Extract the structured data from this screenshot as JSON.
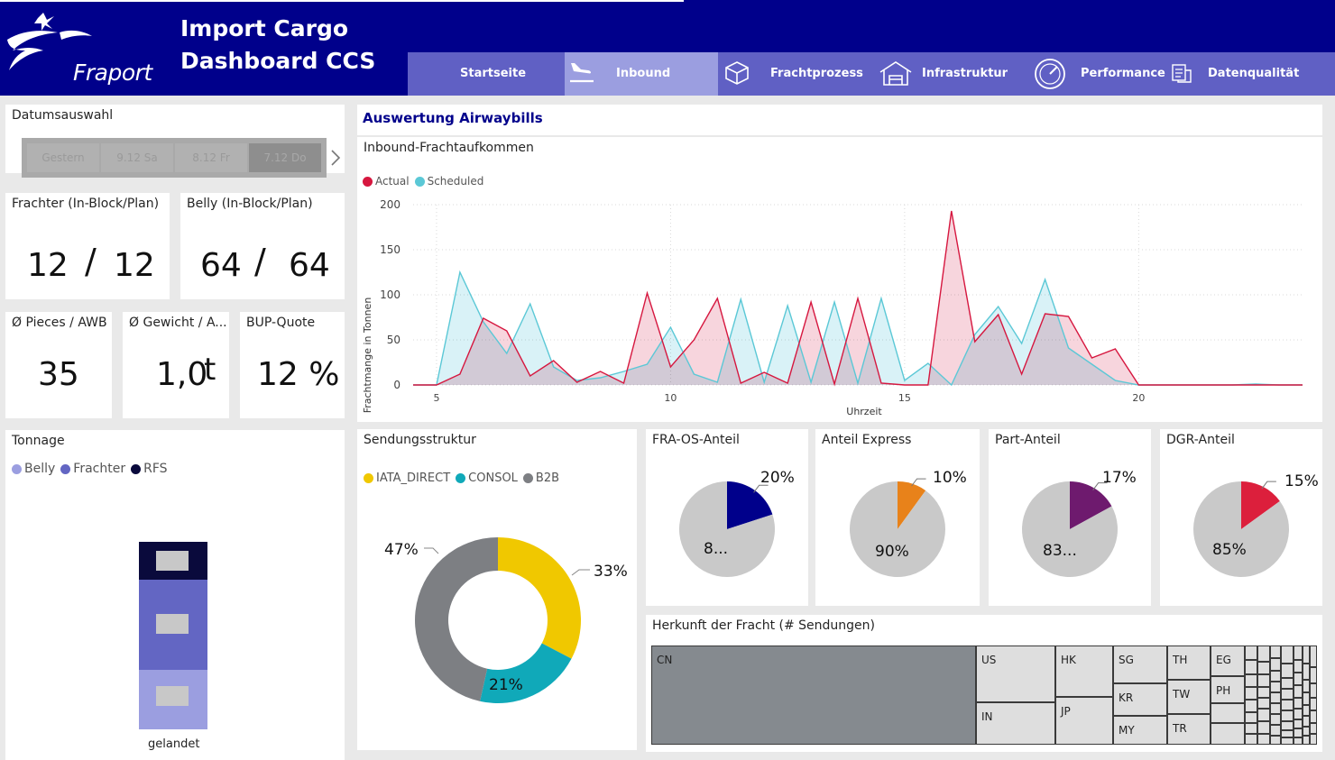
{
  "header": {
    "logo_text": "Fraport",
    "title_line1": "Import Cargo",
    "title_line2": "Dashboard CCS",
    "nav": [
      {
        "label": "Startseite",
        "icon": "none",
        "active": false
      },
      {
        "label": "Inbound",
        "icon": "plane-landing-icon",
        "active": true
      },
      {
        "label": "Frachtprozess",
        "icon": "package-icon",
        "active": false
      },
      {
        "label": "Infrastruktur",
        "icon": "warehouse-icon",
        "active": false
      },
      {
        "label": "Performance",
        "icon": "gauge-icon",
        "active": false
      },
      {
        "label": "Datenqualität",
        "icon": "database-icon",
        "active": false
      }
    ]
  },
  "date_select": {
    "title": "Datumsauswahl",
    "options": [
      "Gestern",
      "9.12 Sa",
      "8.12 Fr",
      "7.12 Do"
    ],
    "selected": "7.12 Do"
  },
  "kpis": {
    "frachter": {
      "title": "Frachter (In-Block/Plan)",
      "inblock": "12",
      "sep": "/",
      "plan": "12"
    },
    "belly": {
      "title": "Belly (In-Block/Plan)",
      "inblock": "64",
      "sep": "/",
      "plan": "64"
    },
    "pieces": {
      "title": "Ø Pieces / AWB",
      "value": "35"
    },
    "gewicht": {
      "title": "Ø Gewicht / A...",
      "value": "1,0",
      "unit": "t"
    },
    "bup": {
      "title": "BUP-Quote",
      "value": "12 %"
    }
  },
  "tonnage": {
    "title": "Tonnage",
    "legend": [
      {
        "label": "Belly",
        "color": "#9b9ee0"
      },
      {
        "label": "Frachter",
        "color": "#6366c3"
      },
      {
        "label": "RFS",
        "color": "#0a0a3c"
      }
    ],
    "category": "gelandet",
    "colors": {
      "belly": "#9b9ee0",
      "frachter": "#6366c3",
      "rfs": "#0a0a3c",
      "label_box": "#c8c8c8"
    }
  },
  "airwaybills": {
    "title": "Auswertung Airwaybills"
  },
  "chart_data": [
    {
      "type": "area",
      "title": "Inbound-Frachtaufkommen",
      "xlabel": "Uhrzeit",
      "ylabel": "Frachtmange in Tonnen",
      "xlim": [
        4.5,
        23.5
      ],
      "ylim": [
        0,
        200
      ],
      "xticks": [
        "5",
        "10",
        "15",
        "20"
      ],
      "yticks": [
        "0",
        "50",
        "100",
        "150",
        "200"
      ],
      "grid": true,
      "legend_position": "top-left",
      "x": [
        4.5,
        5.0,
        5.5,
        6.0,
        6.5,
        7.0,
        7.5,
        8.0,
        8.5,
        9.0,
        9.5,
        10.0,
        10.5,
        11.0,
        11.5,
        12.0,
        12.5,
        13.0,
        13.5,
        14.0,
        14.5,
        15.0,
        15.5,
        16.0,
        16.5,
        17.0,
        17.5,
        18.0,
        18.5,
        19.0,
        19.5,
        20.0,
        20.5,
        21.0,
        21.5,
        22.0,
        22.5,
        23.0,
        23.5
      ],
      "series": [
        {
          "name": "Actual",
          "color": "#d6173f",
          "fill": "#f4c7d1",
          "values": [
            0,
            0,
            12,
            74,
            60,
            10,
            27,
            3,
            15,
            2,
            102,
            20,
            50,
            96,
            2,
            14,
            2,
            92,
            1,
            96,
            2,
            0,
            0,
            193,
            48,
            78,
            12,
            79,
            76,
            30,
            40,
            0,
            0,
            0,
            0,
            0,
            0,
            0,
            0
          ]
        },
        {
          "name": "Scheduled",
          "color": "#5bc8d6",
          "fill": "#d5f1f6",
          "values": [
            0,
            0,
            125,
            70,
            35,
            90,
            20,
            5,
            8,
            15,
            23,
            64,
            12,
            3,
            95,
            3,
            88,
            3,
            92,
            2,
            96,
            5,
            24,
            0,
            56,
            87,
            46,
            117,
            41,
            23,
            5,
            0,
            0,
            0,
            0,
            0,
            1,
            0,
            0
          ]
        }
      ]
    },
    {
      "type": "pie",
      "donut": true,
      "title": "Sendungsstruktur",
      "legend_position": "top-left",
      "series": [
        {
          "name": "IATA_DIRECT",
          "color": "#f0c800",
          "value": 33,
          "label": "33%"
        },
        {
          "name": "CONSOL",
          "color": "#10a9b9",
          "value": 21,
          "label": "21%"
        },
        {
          "name": "B2B",
          "color": "#7d7f83",
          "value": 47,
          "label": "47%"
        }
      ]
    },
    {
      "type": "pie",
      "title": "FRA-OS-Anteil",
      "series": [
        {
          "name": "",
          "color": "#00008b",
          "value": 20,
          "label": "20%"
        },
        {
          "name": "",
          "color": "#c9c9c9",
          "value": 80,
          "label": "8..."
        }
      ]
    },
    {
      "type": "pie",
      "title": "Anteil Express",
      "series": [
        {
          "name": "",
          "color": "#e8821a",
          "value": 10,
          "label": "10%"
        },
        {
          "name": "",
          "color": "#c9c9c9",
          "value": 90,
          "label": "90%"
        }
      ]
    },
    {
      "type": "pie",
      "title": "Part-Anteil",
      "series": [
        {
          "name": "",
          "color": "#6e1a6e",
          "value": 17,
          "label": "17%"
        },
        {
          "name": "",
          "color": "#c9c9c9",
          "value": 83,
          "label": "83..."
        }
      ]
    },
    {
      "type": "pie",
      "title": "DGR-Anteil",
      "series": [
        {
          "name": "",
          "color": "#dc1f3c",
          "value": 15,
          "label": "15%"
        },
        {
          "name": "",
          "color": "#c9c9c9",
          "value": 85,
          "label": "85%"
        }
      ]
    }
  ],
  "herkunft": {
    "title": "Herkunft der Fracht (# Sendungen)",
    "cells": [
      "CN",
      "US",
      "IN",
      "HK",
      "JP",
      "SG",
      "KR",
      "MY",
      "TH",
      "TW",
      "TR",
      "EG",
      "PH"
    ],
    "colors": {
      "cn": "#858a8f",
      "other": "#dedede"
    }
  }
}
